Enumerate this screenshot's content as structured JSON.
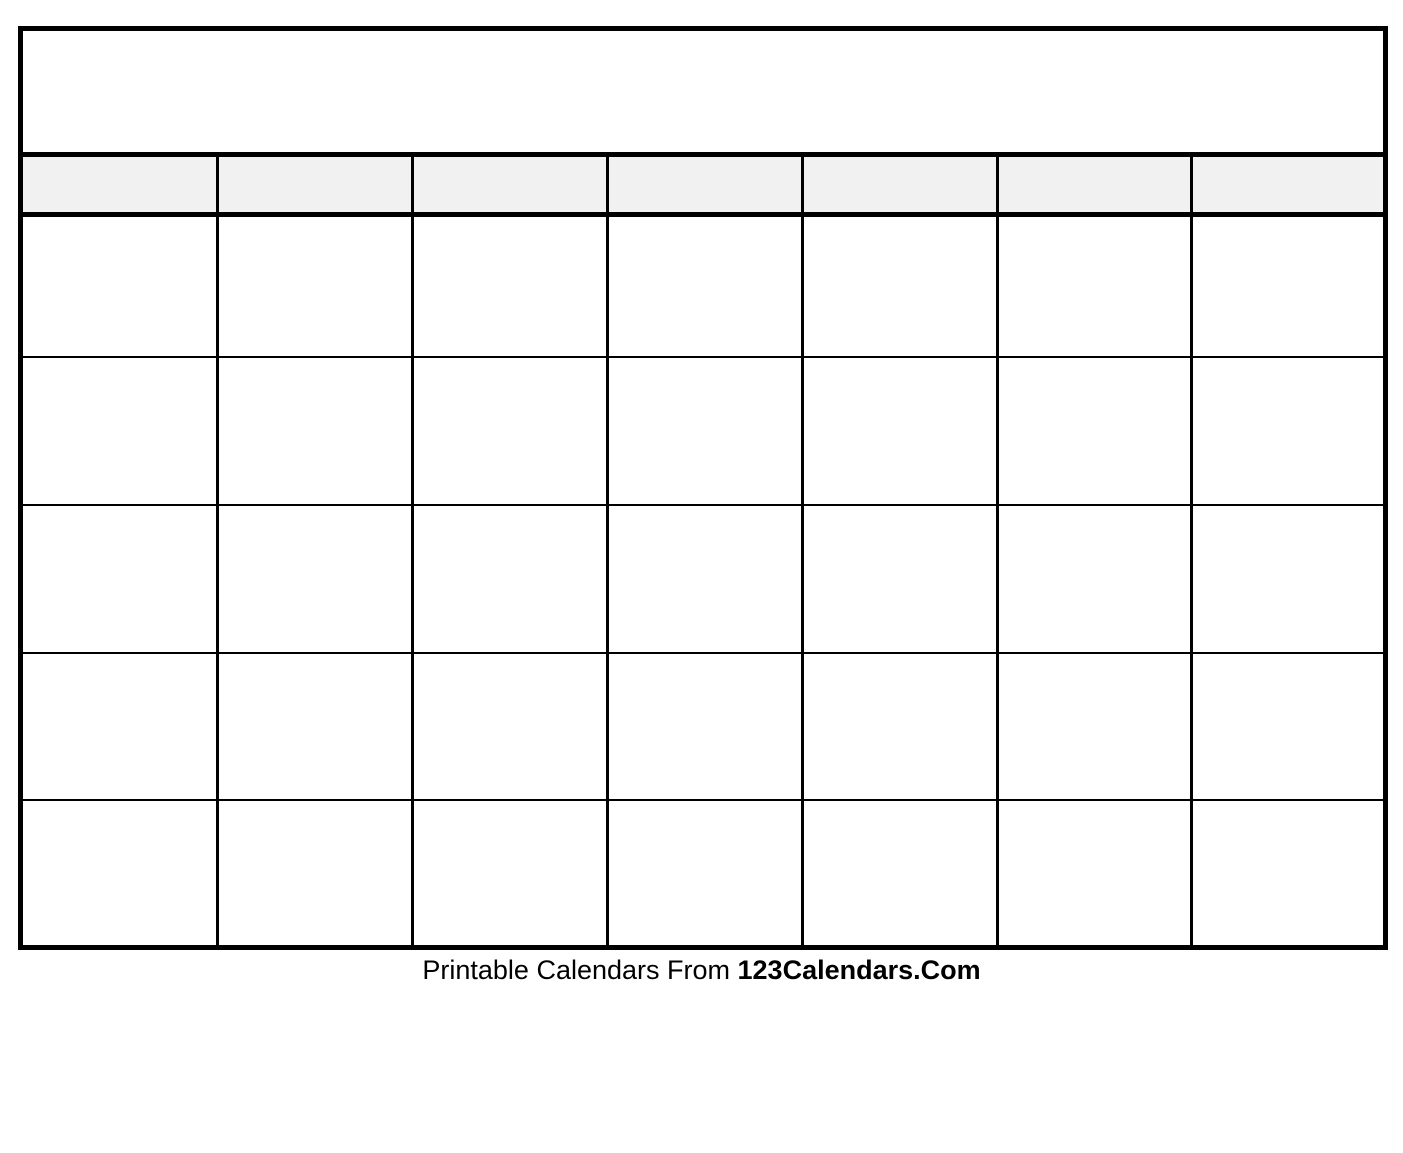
{
  "calendar": {
    "title": "",
    "weekdays": [
      "",
      "",
      "",
      "",
      "",
      "",
      ""
    ],
    "weeks": 5,
    "header_fill": "#f1f1f1"
  },
  "footer": {
    "prefix": "Printable Calendars From ",
    "brand": "123Calendars.Com"
  }
}
